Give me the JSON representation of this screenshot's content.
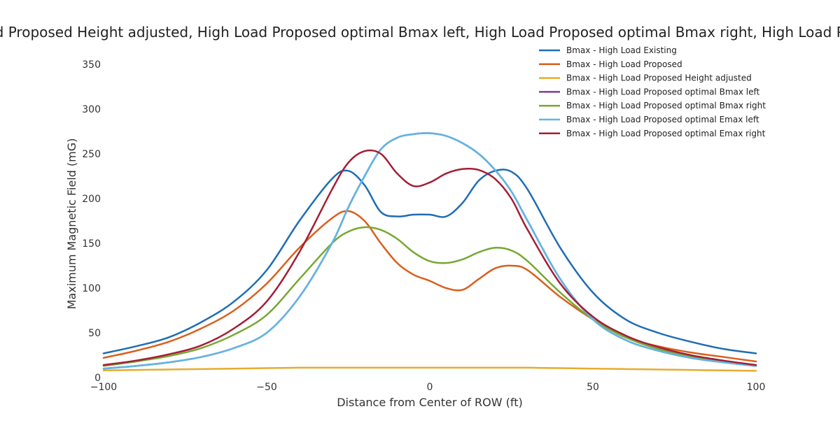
{
  "chart_data": {
    "type": "line",
    "title": "Bmax - High Load Existing, Bmax - High Load Proposed, High Load Proposed Height adjusted, High Load Proposed optimal Bmax left, High Load Proposed optimal Bmax right, High Load Proposed optimal Emax left, High Load Proposed optimal Emax right",
    "xlabel": "Distance from Center of ROW (ft)",
    "ylabel": "Maximum Magnetic Field (mG)",
    "xlim": [
      -100,
      100
    ],
    "ylim": [
      0,
      375
    ],
    "x_ticks": [
      -100,
      -50,
      0,
      50,
      100
    ],
    "x_tick_labels": [
      "−100",
      "−50",
      "0",
      "50",
      "100"
    ],
    "y_ticks": [
      0,
      50,
      100,
      150,
      200,
      250,
      300,
      350
    ],
    "y_tick_labels": [
      "0",
      "50",
      "100",
      "150",
      "200",
      "250",
      "300",
      "350"
    ],
    "grid": false,
    "legend_position": "top-right",
    "x": [
      -100,
      -90,
      -80,
      -70,
      -60,
      -50,
      -40,
      -30,
      -25,
      -20,
      -15,
      -10,
      -5,
      0,
      5,
      10,
      15,
      20,
      25,
      30,
      40,
      50,
      60,
      70,
      80,
      90,
      100
    ],
    "series": [
      {
        "name": "Bmax - High Load Existing",
        "color": "#1f6db5",
        "values": [
          27,
          35,
          45,
          62,
          85,
          120,
          175,
          222,
          231,
          215,
          185,
          180,
          182,
          182,
          180,
          195,
          220,
          231,
          230,
          210,
          145,
          95,
          65,
          50,
          40,
          32,
          27
        ]
      },
      {
        "name": "Bmax - High Load Proposed",
        "color": "#d95f1e",
        "values": [
          22,
          30,
          40,
          55,
          75,
          105,
          145,
          178,
          186,
          175,
          150,
          128,
          115,
          108,
          100,
          98,
          110,
          122,
          125,
          120,
          90,
          65,
          45,
          35,
          28,
          23,
          18
        ]
      },
      {
        "name": "Bmax - High Load Proposed Height adjusted",
        "color": "#e6ac2e",
        "values": [
          8,
          8.5,
          9,
          9.5,
          10,
          10.5,
          11,
          11,
          11,
          11,
          11,
          11,
          11,
          11,
          11,
          11,
          11,
          11,
          11,
          11,
          10.5,
          10,
          9.5,
          9,
          8.5,
          8,
          7.5
        ]
      },
      {
        "name": "Bmax - High Load Proposed optimal Bmax left",
        "color": "#7e3d96",
        "values": [
          10,
          13,
          17,
          23,
          33,
          50,
          90,
          150,
          190,
          225,
          255,
          268,
          272,
          273,
          270,
          262,
          250,
          232,
          208,
          175,
          110,
          65,
          42,
          30,
          22,
          17,
          13
        ]
      },
      {
        "name": "Bmax - High Load Proposed optimal Bmax right",
        "color": "#77a832",
        "values": [
          13,
          18,
          24,
          33,
          48,
          70,
          110,
          150,
          163,
          168,
          165,
          155,
          140,
          130,
          128,
          132,
          140,
          145,
          142,
          130,
          95,
          65,
          45,
          32,
          24,
          18,
          13
        ]
      },
      {
        "name": "Bmax - High Load Proposed optimal Emax left",
        "color": "#5fb6e4",
        "values": [
          10,
          13,
          17,
          23,
          33,
          50,
          90,
          150,
          190,
          225,
          255,
          268,
          272,
          273,
          270,
          262,
          250,
          232,
          208,
          175,
          110,
          65,
          42,
          30,
          22,
          17,
          13
        ]
      },
      {
        "name": "Bmax - High Load Proposed optimal Emax right",
        "color": "#a31e36",
        "values": [
          14,
          19,
          26,
          36,
          55,
          85,
          140,
          210,
          240,
          253,
          250,
          228,
          214,
          218,
          228,
          233,
          232,
          222,
          200,
          165,
          105,
          68,
          47,
          34,
          25,
          19,
          14
        ]
      }
    ]
  }
}
